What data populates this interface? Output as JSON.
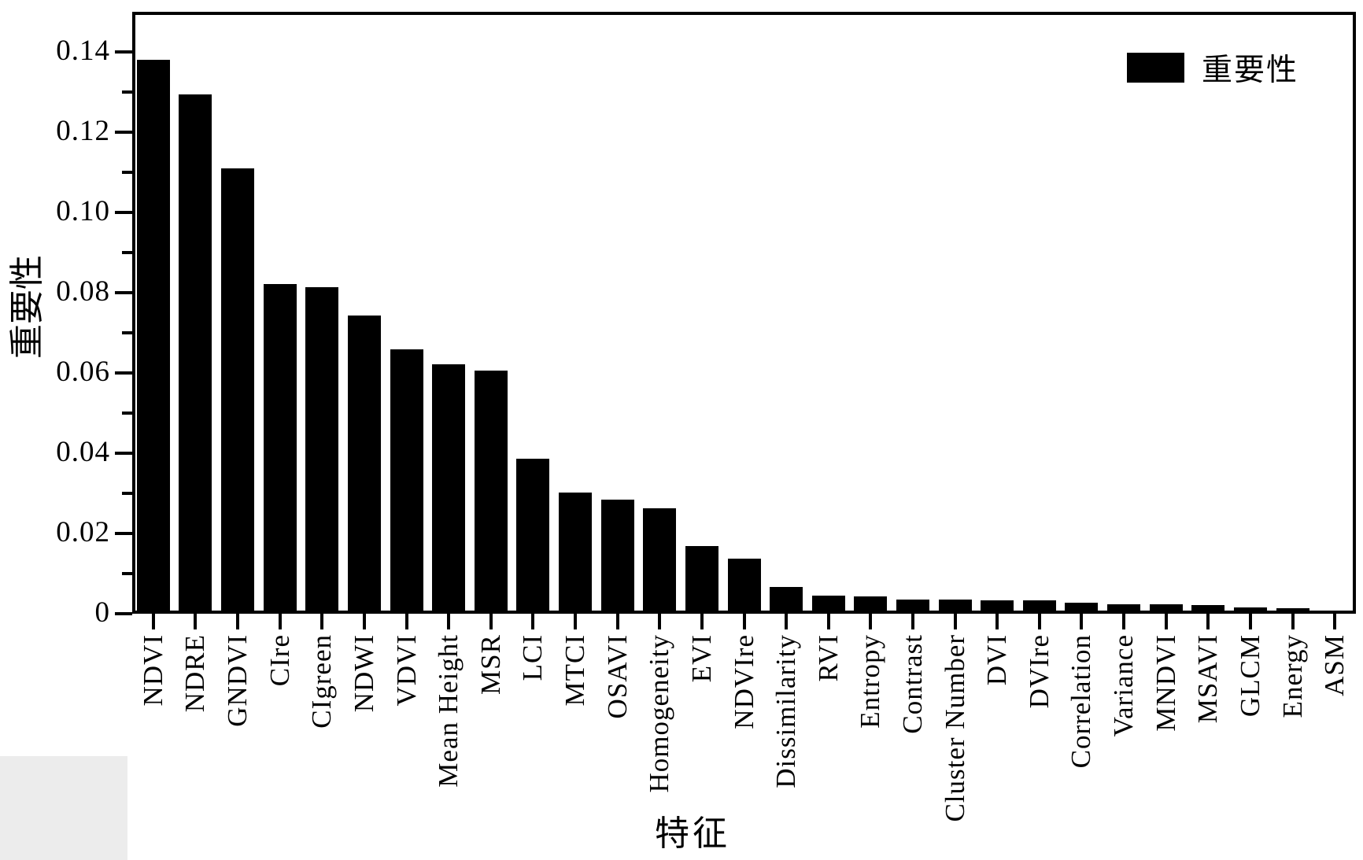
{
  "figure": {
    "background": "#ffffff",
    "scan_artifact_color": "#ececec"
  },
  "chart_data": {
    "type": "bar",
    "title": "",
    "xlabel": "特征",
    "ylabel": "重要性",
    "legend": {
      "label": "重要性",
      "position": "top-right",
      "swatch_color": "#000000"
    },
    "bar_color": "#000000",
    "axis_color": "#000000",
    "grid": false,
    "categories": [
      "NDVI",
      "NDRE",
      "GNDVI",
      "CIre",
      "CIgreen",
      "NDWI",
      "VDVI",
      "Mean Height",
      "MSR",
      "LCI",
      "MTCI",
      "OSAVI",
      "Homogeneity",
      "EVI",
      "NDVIre",
      "Dissimilarity",
      "RVI",
      "Entropy",
      "Contrast",
      "Cluster Number",
      "DVI",
      "DVIre",
      "Correlation",
      "Variance",
      "MNDVI",
      "MSAVI",
      "GLCM",
      "Energy",
      "ASM"
    ],
    "values": [
      0.138,
      0.1295,
      0.111,
      0.0822,
      0.0813,
      0.0743,
      0.0659,
      0.0622,
      0.0605,
      0.0387,
      0.0302,
      0.0285,
      0.0262,
      0.0168,
      0.0138,
      0.0067,
      0.0046,
      0.0043,
      0.0036,
      0.0035,
      0.0034,
      0.0033,
      0.0028,
      0.0024,
      0.0024,
      0.0022,
      0.0016,
      0.0013,
      0.0008
    ],
    "ylim": [
      0,
      0.15
    ],
    "yticks_major": [
      0,
      0.02,
      0.04,
      0.06,
      0.08,
      0.1,
      0.12,
      0.14
    ],
    "ytick_labels": [
      "0",
      "0.02",
      "0.04",
      "0.06",
      "0.08",
      "0.10",
      "0.12",
      "0.14"
    ],
    "yticks_minor": [
      0.01,
      0.03,
      0.05,
      0.07,
      0.09,
      0.11,
      0.13
    ]
  }
}
